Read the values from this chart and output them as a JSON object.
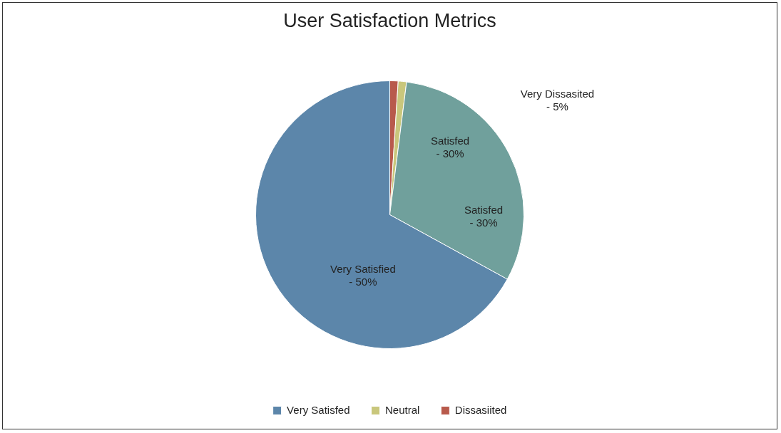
{
  "chart_data": {
    "type": "pie",
    "title": "User Satisfaction Metrics",
    "categories": [
      "Dissasiited",
      "Neutral",
      null,
      "Very Satisfed"
    ],
    "values": [
      1,
      1,
      31,
      67
    ],
    "colors": [
      "#b85a4c",
      "#c9c77c",
      "#70a09c",
      "#5c86aa"
    ],
    "annotations": [
      "Very Dissasited - 5%",
      "Satisfed - 30%",
      "Satisfed - 30%",
      "Very Satisfied - 50%"
    ],
    "legend": "bottom"
  }
}
